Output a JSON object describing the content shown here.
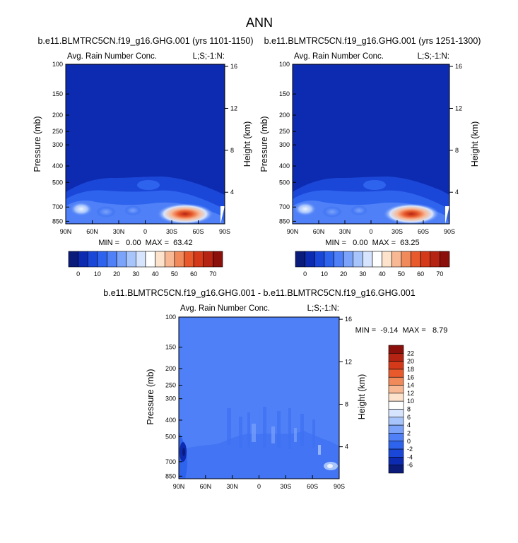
{
  "figure_title": "ANN",
  "chart_data": [
    {
      "type": "heatmap",
      "title": "b.e11.BLMTRC5CN.f19_g16.GHG.001 (yrs 1101-1150)",
      "left_label": "Avg. Rain Number Conc.",
      "right_label": "L;S;-1:N:",
      "ylabel": "Pressure (mb)",
      "ylabel_right": "Height (km)",
      "x_ticks": [
        "90N",
        "60N",
        "30N",
        "0",
        "30S",
        "60S",
        "90S"
      ],
      "y_ticks": [
        "100",
        "150",
        "200",
        "250",
        "300",
        "400",
        "500",
        "700",
        "850"
      ],
      "y_ticks_right": [
        "16",
        "12",
        "8",
        "4"
      ],
      "stats": "MIN =   0.00  MAX =  63.42",
      "colorbar": {
        "levels": [
          "0",
          "10",
          "20",
          "30",
          "40",
          "50",
          "60",
          "70"
        ],
        "colors": [
          "#0a1b7a",
          "#0d2bb0",
          "#1b47d8",
          "#2e63ee",
          "#4f80f7",
          "#7aa3f9",
          "#a7c4fb",
          "#d6e4fd",
          "#ffffff",
          "#fde2cc",
          "#f8b894",
          "#f08a5b",
          "#e85a2c",
          "#d43a1a",
          "#b52412",
          "#8b0f0a"
        ]
      },
      "min": 0.0,
      "max": 63.42
    },
    {
      "type": "heatmap",
      "title": "b.e11.BLMTRC5CN.f19_g16.GHG.001 (yrs 1251-1300)",
      "left_label": "Avg. Rain Number Conc.",
      "right_label": "L;S;-1:N:",
      "ylabel": "Pressure (mb)",
      "ylabel_right": "Height (km)",
      "x_ticks": [
        "90N",
        "60N",
        "30N",
        "0",
        "30S",
        "60S",
        "90S"
      ],
      "y_ticks": [
        "100",
        "150",
        "200",
        "250",
        "300",
        "400",
        "500",
        "700",
        "850"
      ],
      "y_ticks_right": [
        "16",
        "12",
        "8",
        "4"
      ],
      "stats": "MIN =   0.00  MAX =  63.25",
      "colorbar": {
        "levels": [
          "0",
          "10",
          "20",
          "30",
          "40",
          "50",
          "60",
          "70"
        ],
        "colors": [
          "#0a1b7a",
          "#0d2bb0",
          "#1b47d8",
          "#2e63ee",
          "#4f80f7",
          "#7aa3f9",
          "#a7c4fb",
          "#d6e4fd",
          "#ffffff",
          "#fde2cc",
          "#f8b894",
          "#f08a5b",
          "#e85a2c",
          "#d43a1a",
          "#b52412",
          "#8b0f0a"
        ]
      },
      "min": 0.0,
      "max": 63.25
    },
    {
      "type": "heatmap",
      "title": "b.e11.BLMTRC5CN.f19_g16.GHG.001 - b.e11.BLMTRC5CN.f19_g16.GHG.001",
      "left_label": "Avg. Rain Number Conc.",
      "right_label": "L;S;-1:N:",
      "ylabel": "Pressure (mb)",
      "ylabel_right": "Height (km)",
      "x_ticks": [
        "90N",
        "60N",
        "30N",
        "0",
        "30S",
        "60S",
        "90S"
      ],
      "y_ticks": [
        "100",
        "150",
        "200",
        "250",
        "300",
        "400",
        "500",
        "700",
        "850"
      ],
      "y_ticks_right": [
        "16",
        "12",
        "8",
        "4"
      ],
      "stats": "MIN =  -9.14  MAX =   8.79",
      "colorbar": {
        "levels": [
          "22",
          "20",
          "18",
          "16",
          "14",
          "12",
          "10",
          "8",
          "6",
          "4",
          "2",
          "0",
          "-2",
          "-4",
          "-6"
        ],
        "colors": [
          "#8b0f0a",
          "#b52412",
          "#d43a1a",
          "#e85a2c",
          "#f08a5b",
          "#f8b894",
          "#fde2cc",
          "#ffffff",
          "#d6e4fd",
          "#a7c4fb",
          "#7aa3f9",
          "#4f80f7",
          "#2e63ee",
          "#1b47d8",
          "#0d2bb0",
          "#0a1b7a"
        ]
      },
      "min": -9.14,
      "max": 8.79
    }
  ]
}
